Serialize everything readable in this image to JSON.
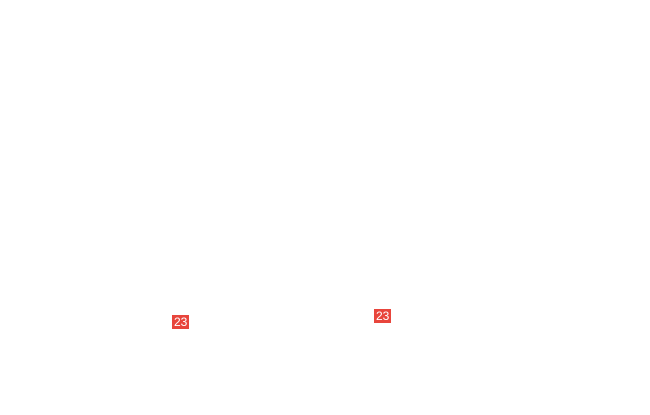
{
  "badges": [
    {
      "label": "23",
      "color": "#e8453c"
    },
    {
      "label": "23",
      "color": "#e8453c"
    }
  ]
}
